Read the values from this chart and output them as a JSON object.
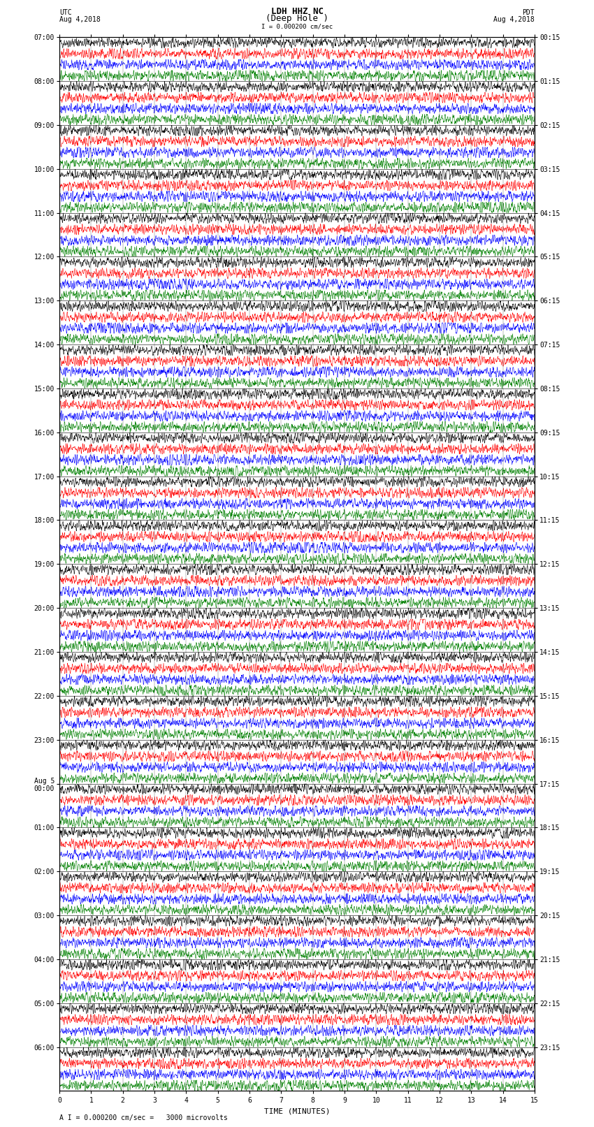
{
  "title_line1": "LDH HHZ NC",
  "title_line2": "(Deep Hole )",
  "scale_label": "I = 0.000200 cm/sec",
  "bottom_scale": "A I = 0.000200 cm/sec =   3000 microvolts",
  "left_label": "UTC",
  "left_date": "Aug 4,2018",
  "right_label": "PDT",
  "right_date": "Aug 4,2018",
  "xlabel": "TIME (MINUTES)",
  "bg_color": "#ffffff",
  "trace_colors": [
    "black",
    "red",
    "blue",
    "green"
  ],
  "n_traces_per_row": 4,
  "xmin": 0,
  "xmax": 15,
  "xticks": [
    0,
    1,
    2,
    3,
    4,
    5,
    6,
    7,
    8,
    9,
    10,
    11,
    12,
    13,
    14,
    15
  ],
  "left_times": [
    "07:00",
    "08:00",
    "09:00",
    "10:00",
    "11:00",
    "12:00",
    "13:00",
    "14:00",
    "15:00",
    "16:00",
    "17:00",
    "18:00",
    "19:00",
    "20:00",
    "21:00",
    "22:00",
    "23:00",
    "Aug 5\n00:00",
    "01:00",
    "02:00",
    "03:00",
    "04:00",
    "05:00",
    "06:00"
  ],
  "right_times": [
    "00:15",
    "01:15",
    "02:15",
    "03:15",
    "04:15",
    "05:15",
    "06:15",
    "07:15",
    "08:15",
    "09:15",
    "10:15",
    "11:15",
    "12:15",
    "13:15",
    "14:15",
    "15:15",
    "16:15",
    "17:15",
    "18:15",
    "19:15",
    "20:15",
    "21:15",
    "22:15",
    "23:15"
  ],
  "n_rows": 24,
  "seed": 42,
  "noise_base": 0.22,
  "burst_amplitude": 0.35,
  "font_size_title": 9,
  "font_size_tick": 7,
  "font_size_label": 8
}
